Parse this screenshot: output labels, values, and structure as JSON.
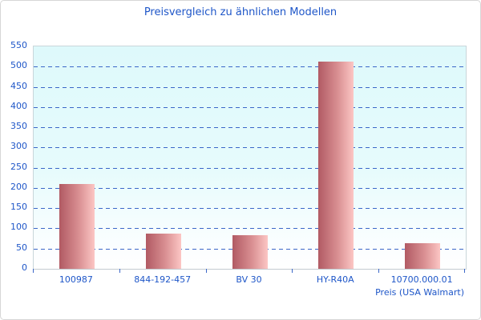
{
  "chart_data": {
    "type": "bar",
    "title": "Preisvergleich zu ähnlichen Modellen",
    "categories": [
      "100987",
      "844-192-457",
      "BV 30",
      "HY-R40A",
      "10700.000.01"
    ],
    "values": [
      210,
      88,
      83,
      512,
      64
    ],
    "xlabel": "Preis (USA Walmart)",
    "ylabel": "",
    "ylim": [
      0,
      550
    ],
    "ytick_step": 50,
    "grid": "horizontal-dashed",
    "legend_position": "none",
    "colors": {
      "title_text": "#1e56c8",
      "axis_text": "#1e56c8",
      "gridline": "#3b67c8",
      "tick": "#3b67c8",
      "bar_gradient_start": "#b15a63",
      "bar_gradient_end": "#fcc6c4",
      "plot_background_top": "#def9fb",
      "plot_background_bottom": "#ffffff",
      "plot_border": "#c9d6da",
      "frame_border": "#d6d6d6"
    }
  }
}
